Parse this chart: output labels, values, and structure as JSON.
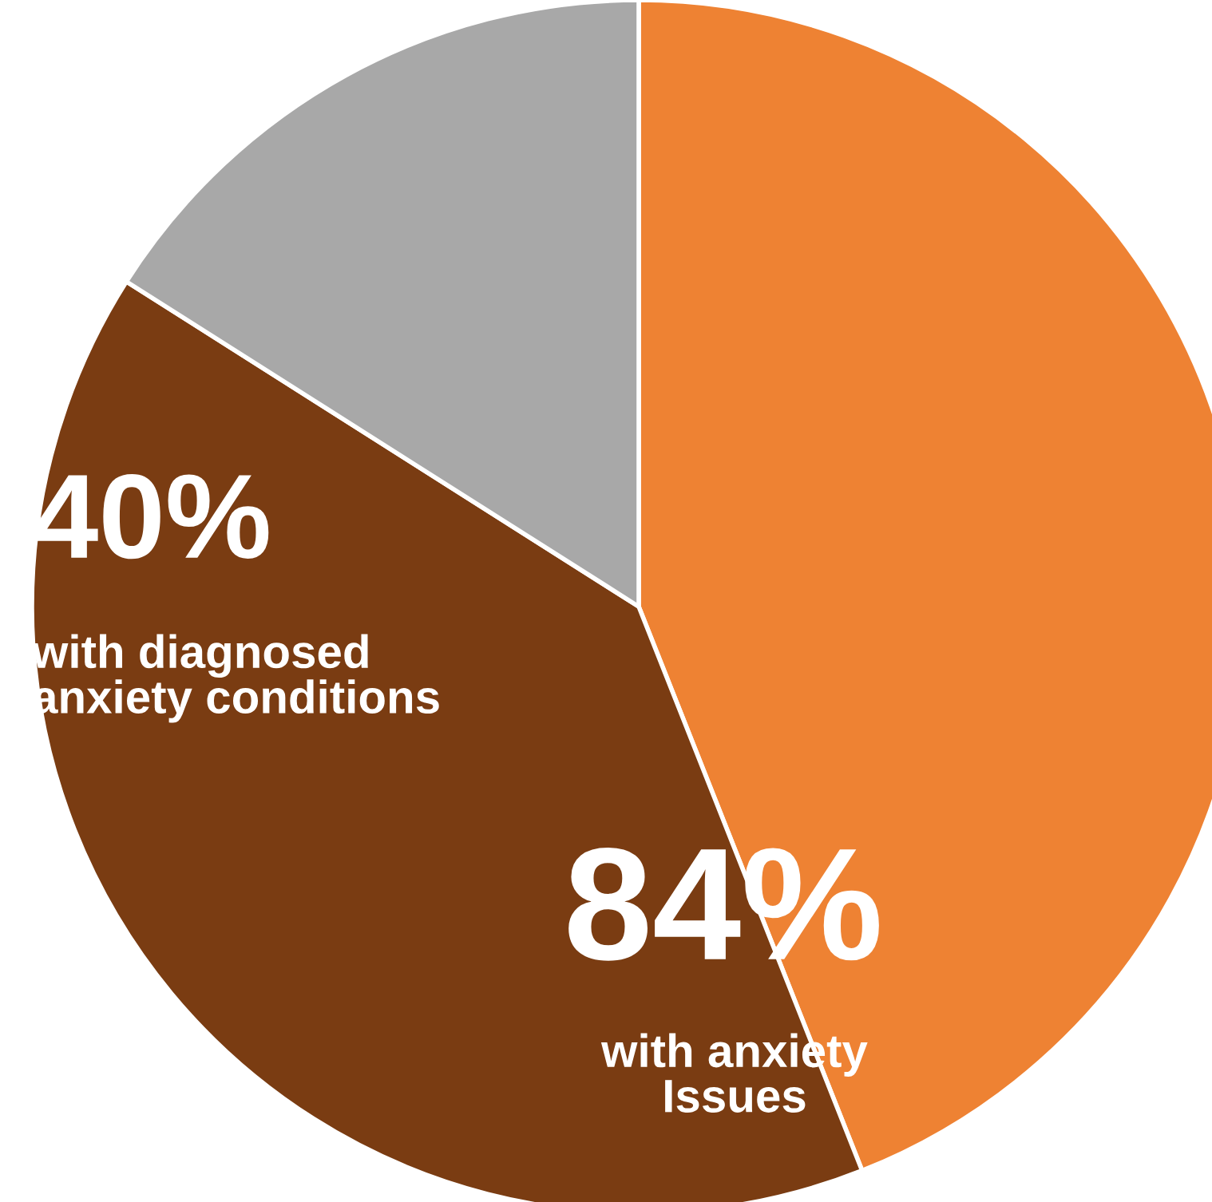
{
  "chart_data": {
    "type": "pie",
    "categories": [
      null,
      null,
      null
    ],
    "values": [
      44,
      40,
      16
    ],
    "colors": [
      "#ee8233",
      "#7a3c12",
      "#a8a8a8"
    ],
    "annotations": [
      "40%",
      "with diagnosed\nanxiety conditions",
      "84%",
      "with anxiety\nIssues"
    ],
    "legend": false
  }
}
